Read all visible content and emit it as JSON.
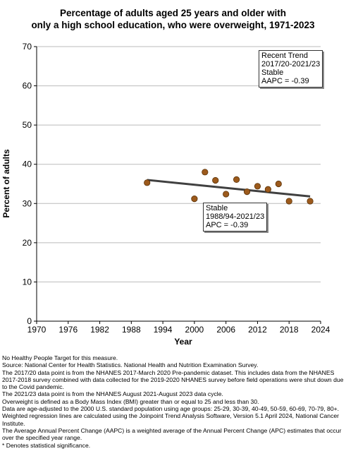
{
  "chart_data": {
    "type": "scatter",
    "title_lines": [
      "Percentage of adults aged 25 years and older with",
      "only a high school education, who were overweight, 1971-2023"
    ],
    "xlabel": "Year",
    "ylabel": "Percent of adults",
    "xlim": [
      1970,
      2024
    ],
    "ylim": [
      0,
      70
    ],
    "x_ticks": [
      1970,
      1976,
      1982,
      1988,
      1994,
      2000,
      2006,
      2012,
      2018,
      2024
    ],
    "y_ticks": [
      0,
      10,
      20,
      30,
      40,
      50,
      60,
      70
    ],
    "grid": "horizontal",
    "point_color": "#9c5a1c",
    "trend_color": "#404040",
    "points": [
      {
        "x": 1991,
        "y": 35.3
      },
      {
        "x": 2000,
        "y": 31.2
      },
      {
        "x": 2002,
        "y": 38.0
      },
      {
        "x": 2004,
        "y": 35.9
      },
      {
        "x": 2006,
        "y": 32.4
      },
      {
        "x": 2008,
        "y": 36.1
      },
      {
        "x": 2010,
        "y": 33.0
      },
      {
        "x": 2012,
        "y": 34.4
      },
      {
        "x": 2014,
        "y": 33.6
      },
      {
        "x": 2016,
        "y": 35.0
      },
      {
        "x": 2018,
        "y": 30.6
      },
      {
        "x": 2022,
        "y": 30.6
      }
    ],
    "trend_line": {
      "x": [
        1991,
        2022
      ],
      "y": [
        36.0,
        31.8
      ]
    },
    "annotations": [
      {
        "id": "recent",
        "lines": [
          "Recent Trend",
          "2017/20-2021/23",
          "Stable",
          "AAPC = -0.39"
        ]
      },
      {
        "id": "overall",
        "lines": [
          "Stable",
          "1988/94-2021/23",
          "APC = -0.39"
        ]
      }
    ]
  },
  "footnotes": [
    "No Healthy People Target for this measure.",
    "Source: National Center for Health Statistics. National Health and Nutrition Examination Survey.",
    "The 2017/20 data point is from the NHANES 2017-March 2020 Pre-pandemic dataset. This includes data from the NHANES 2017-2018 survey combined with data collected for the 2019-2020 NHANES survey before field operations were shut down due to the Covid pandemic.",
    "The 2021/23 data point is from the NHANES August 2021-August 2023 data cycle.",
    "Overweight is defined as a Body Mass Index (BMI) greater than or equal to 25 and less than 30.",
    "Data are age-adjusted to the 2000 U.S. standard population using age groups: 25-29, 30-39, 40-49, 50-59, 60-69, 70-79, 80+.",
    "Weighted regression lines are calculated using the Joinpoint Trend Analysis Software, Version 5.1 April 2024, National Cancer Institute.",
    "The Average Annual Percent Change (AAPC) is a weighted average of the Annual Percent Change (APC) estimates that occur over the specified year range.",
    "* Denotes statistical significance."
  ]
}
